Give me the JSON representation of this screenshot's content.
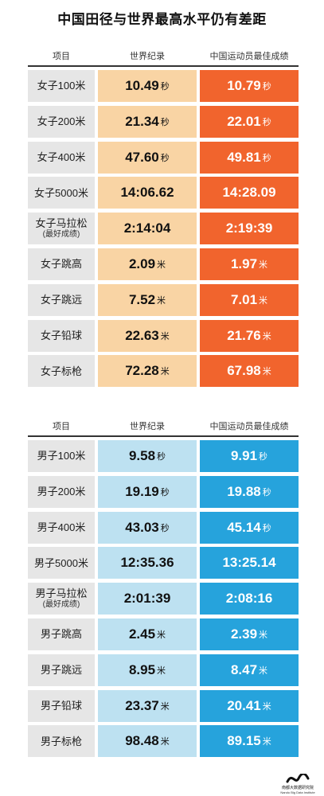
{
  "title": "中国田径与世界最高水平仍有差距",
  "headers": {
    "event": "项目",
    "world_record": "世界纪录",
    "china_best": "中国运动员最佳成绩"
  },
  "colors": {
    "women_world_record": "#f9d4a4",
    "women_china_best": "#f1642d",
    "men_world_record": "#bde1f1",
    "men_china_best": "#26a3dc",
    "event_cell": "#e6e6e6"
  },
  "logo": {
    "name": "南都大数据研究院",
    "en": "Nandu Big Data Institute"
  },
  "chart_data": [
    {
      "type": "table",
      "group": "women",
      "columns": [
        "项目",
        "世界纪录",
        "中国运动员最佳成绩"
      ],
      "rows": [
        {
          "event": "女子100米",
          "sub": "",
          "world_record": "10.49",
          "china_best": "10.79",
          "unit": "秒"
        },
        {
          "event": "女子200米",
          "sub": "",
          "world_record": "21.34",
          "china_best": "22.01",
          "unit": "秒"
        },
        {
          "event": "女子400米",
          "sub": "",
          "world_record": "47.60",
          "china_best": "49.81",
          "unit": "秒"
        },
        {
          "event": "女子5000米",
          "sub": "",
          "world_record": "14:06.62",
          "china_best": "14:28.09",
          "unit": ""
        },
        {
          "event": "女子马拉松",
          "sub": "(最好成绩)",
          "world_record": "2:14:04",
          "china_best": "2:19:39",
          "unit": ""
        },
        {
          "event": "女子跳高",
          "sub": "",
          "world_record": "2.09",
          "china_best": "1.97",
          "unit": "米"
        },
        {
          "event": "女子跳远",
          "sub": "",
          "world_record": "7.52",
          "china_best": "7.01",
          "unit": "米"
        },
        {
          "event": "女子铅球",
          "sub": "",
          "world_record": "22.63",
          "china_best": "21.76",
          "unit": "米"
        },
        {
          "event": "女子标枪",
          "sub": "",
          "world_record": "72.28",
          "china_best": "67.98",
          "unit": "米"
        }
      ]
    },
    {
      "type": "table",
      "group": "men",
      "columns": [
        "项目",
        "世界纪录",
        "中国运动员最佳成绩"
      ],
      "rows": [
        {
          "event": "男子100米",
          "sub": "",
          "world_record": "9.58",
          "china_best": "9.91",
          "unit": "秒"
        },
        {
          "event": "男子200米",
          "sub": "",
          "world_record": "19.19",
          "china_best": "19.88",
          "unit": "秒"
        },
        {
          "event": "男子400米",
          "sub": "",
          "world_record": "43.03",
          "china_best": "45.14",
          "unit": "秒"
        },
        {
          "event": "男子5000米",
          "sub": "",
          "world_record": "12:35.36",
          "china_best": "13:25.14",
          "unit": ""
        },
        {
          "event": "男子马拉松",
          "sub": "(最好成绩)",
          "world_record": "2:01:39",
          "china_best": "2:08:16",
          "unit": ""
        },
        {
          "event": "男子跳高",
          "sub": "",
          "world_record": "2.45",
          "china_best": "2.39",
          "unit": "米"
        },
        {
          "event": "男子跳远",
          "sub": "",
          "world_record": "8.95",
          "china_best": "8.47",
          "unit": "米"
        },
        {
          "event": "男子铅球",
          "sub": "",
          "world_record": "23.37",
          "china_best": "20.41",
          "unit": "米"
        },
        {
          "event": "男子标枪",
          "sub": "",
          "world_record": "98.48",
          "china_best": "89.15",
          "unit": "米"
        }
      ]
    }
  ]
}
